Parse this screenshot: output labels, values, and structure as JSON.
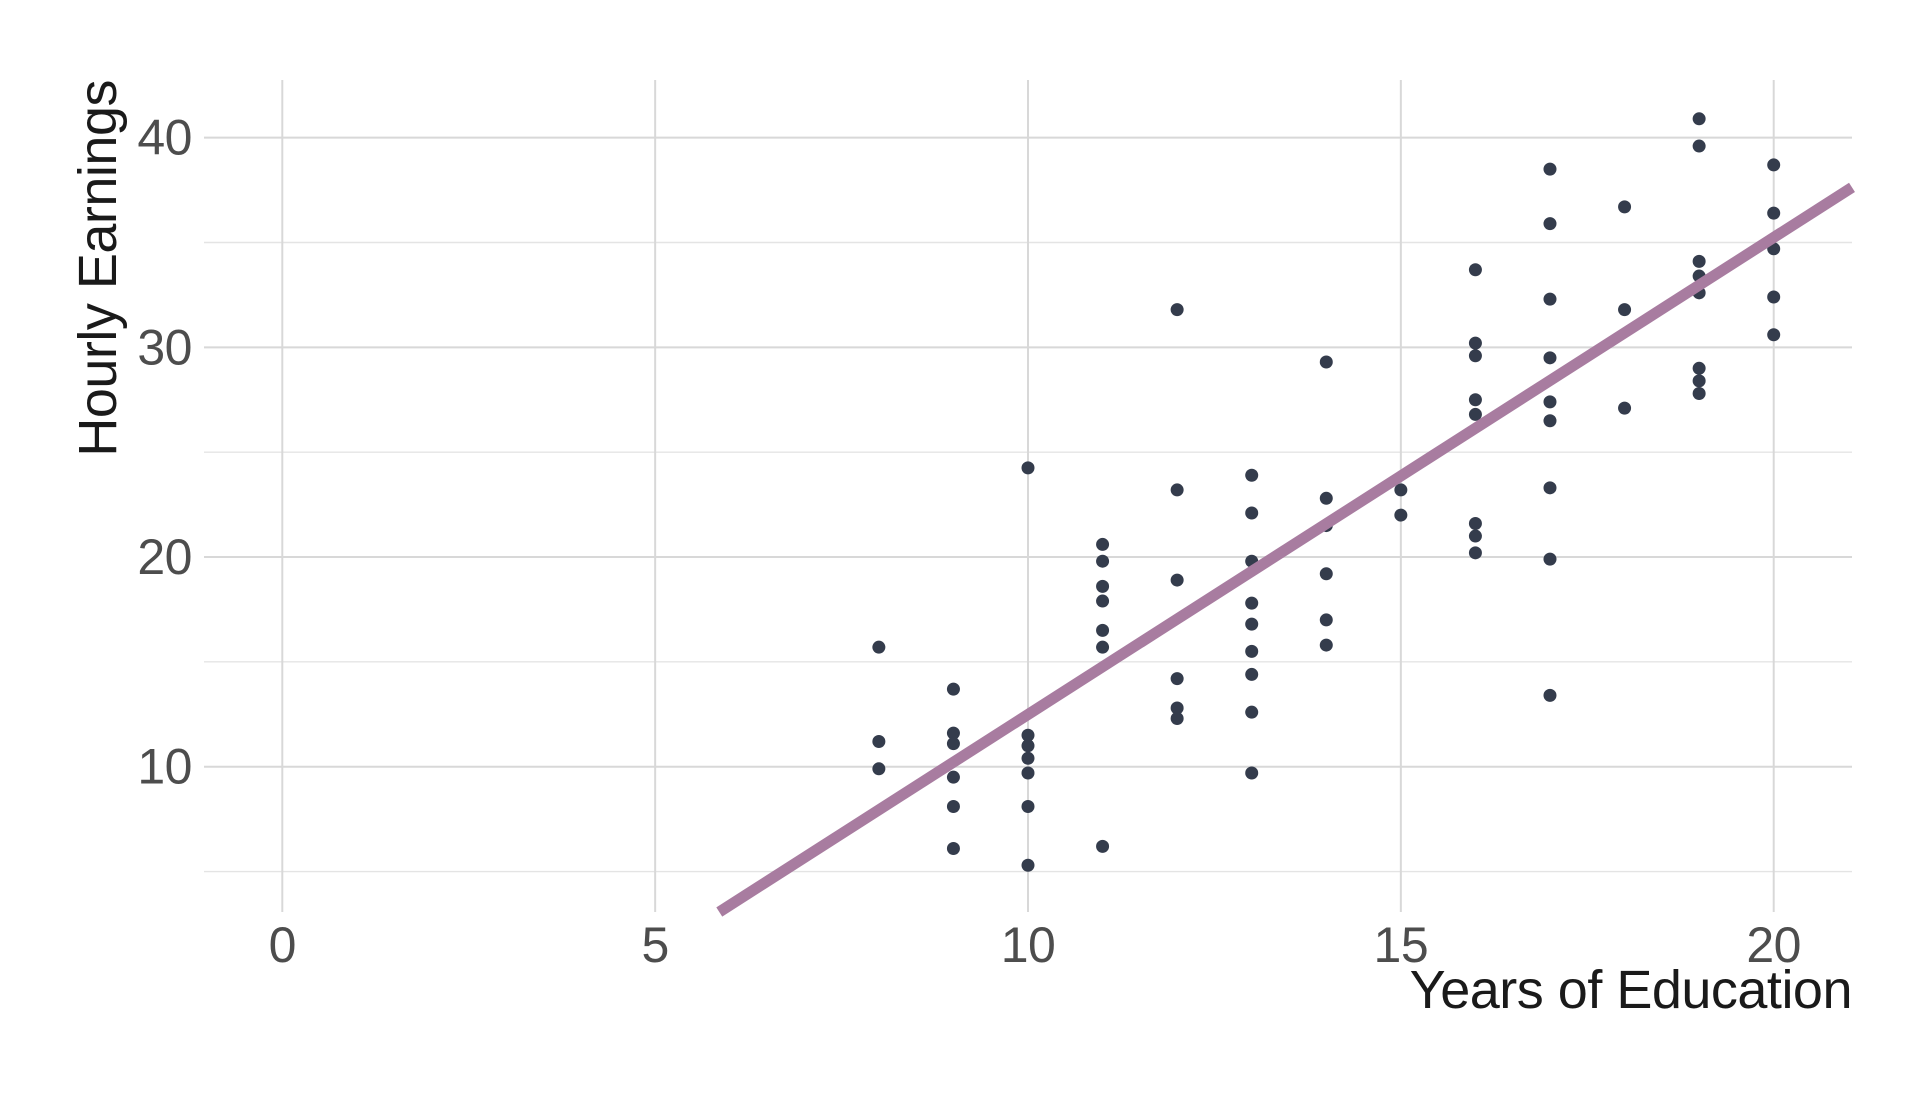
{
  "chart_data": {
    "type": "scatter",
    "title": "",
    "xlabel": "Years of Education",
    "ylabel": "Hourly Earnings",
    "legend_position": "none",
    "grid": "major x+y, minor y only",
    "x_ticks": [
      0,
      5,
      10,
      15,
      20
    ],
    "y_ticks": [
      10,
      20,
      30,
      40
    ],
    "y_minor_ticks": [
      5,
      15,
      25,
      35
    ],
    "xlim": [
      -1.05,
      21.05
    ],
    "ylim": [
      3.07,
      42.75
    ],
    "points": [
      [
        8,
        15.7
      ],
      [
        8,
        11.2
      ],
      [
        8,
        9.9
      ],
      [
        9,
        13.7
      ],
      [
        9,
        11.6
      ],
      [
        9,
        11.1
      ],
      [
        9,
        9.5
      ],
      [
        9,
        8.1
      ],
      [
        9,
        6.1
      ],
      [
        10,
        24.25
      ],
      [
        10,
        11.5
      ],
      [
        10,
        11.0
      ],
      [
        10,
        10.4
      ],
      [
        10,
        9.7
      ],
      [
        10,
        8.1
      ],
      [
        10,
        5.3
      ],
      [
        11,
        20.6
      ],
      [
        11,
        19.8
      ],
      [
        11,
        18.6
      ],
      [
        11,
        17.9
      ],
      [
        11,
        16.5
      ],
      [
        11,
        15.7
      ],
      [
        11,
        6.2
      ],
      [
        12,
        31.8
      ],
      [
        12,
        23.2
      ],
      [
        12,
        18.9
      ],
      [
        12,
        14.2
      ],
      [
        12,
        12.8
      ],
      [
        12,
        12.3
      ],
      [
        13,
        23.9
      ],
      [
        13,
        22.1
      ],
      [
        13,
        19.8
      ],
      [
        13,
        17.8
      ],
      [
        13,
        16.8
      ],
      [
        13,
        15.5
      ],
      [
        13,
        14.4
      ],
      [
        13,
        12.6
      ],
      [
        13,
        9.7
      ],
      [
        14,
        29.3
      ],
      [
        14,
        22.8
      ],
      [
        14,
        21.5
      ],
      [
        14,
        19.2
      ],
      [
        14,
        17.0
      ],
      [
        14,
        15.8
      ],
      [
        15,
        23.2
      ],
      [
        15,
        22.0
      ],
      [
        16,
        33.7
      ],
      [
        16,
        30.2
      ],
      [
        16,
        29.6
      ],
      [
        16,
        27.5
      ],
      [
        16,
        26.8
      ],
      [
        16,
        21.6
      ],
      [
        16,
        21.0
      ],
      [
        16,
        20.2
      ],
      [
        17,
        38.5
      ],
      [
        17,
        35.9
      ],
      [
        17,
        32.3
      ],
      [
        17,
        29.5
      ],
      [
        17,
        27.4
      ],
      [
        17,
        26.5
      ],
      [
        17,
        23.3
      ],
      [
        17,
        19.9
      ],
      [
        17,
        13.4
      ],
      [
        18,
        36.7
      ],
      [
        18,
        31.8
      ],
      [
        18,
        27.1
      ],
      [
        19,
        40.9
      ],
      [
        19,
        39.6
      ],
      [
        19,
        34.1
      ],
      [
        19,
        33.4
      ],
      [
        19,
        32.6
      ],
      [
        19,
        29.0
      ],
      [
        19,
        28.4
      ],
      [
        19,
        27.8
      ],
      [
        20,
        38.7
      ],
      [
        20,
        36.4
      ],
      [
        20,
        34.7
      ],
      [
        20,
        32.4
      ],
      [
        20,
        30.6
      ]
    ],
    "regression_line": {
      "slope": 2.275,
      "intercept": -10.26,
      "x_start": 5.86,
      "x_end": 21.05
    }
  },
  "style": {
    "background": "#ffffff",
    "point_color": "#343c4c",
    "line_color": "#a87ca0",
    "grid_major_color": "#d8d8d8",
    "grid_minor_color": "#e4e4e4",
    "tick_text_color": "#4d4d4d",
    "title_text_color": "#1a1a1a"
  }
}
